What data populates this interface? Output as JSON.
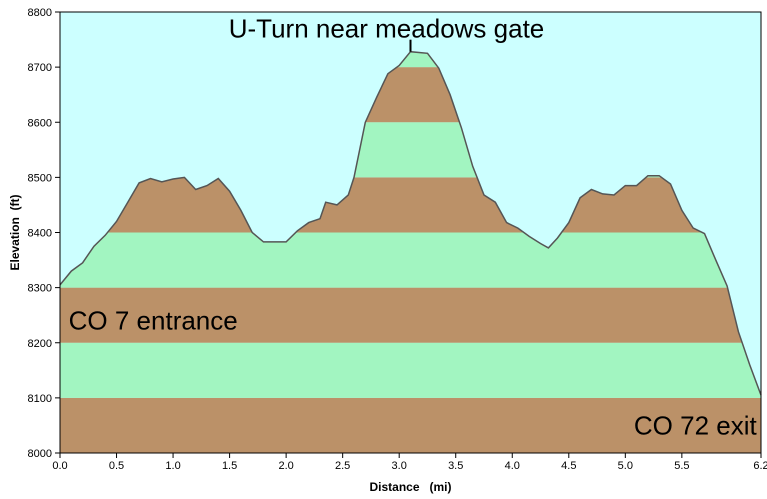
{
  "chart_data": {
    "type": "area",
    "xlabel": "Distance   (mi)",
    "ylabel": "Elevation  (ft)",
    "xlim": [
      0,
      6.2
    ],
    "ylim": [
      8000,
      8800
    ],
    "x_ticks": [
      0.0,
      0.5,
      1.0,
      1.5,
      2.0,
      2.5,
      3.0,
      3.5,
      4.0,
      4.5,
      5.0,
      5.5,
      6.2
    ],
    "x_tick_labels": [
      "0.0",
      "0.5",
      "1.0",
      "1.5",
      "2.0",
      "2.5",
      "3.0",
      "3.5",
      "4.0",
      "4.5",
      "5.0",
      "5.5",
      "6.2"
    ],
    "y_ticks": [
      8000,
      8100,
      8200,
      8300,
      8400,
      8500,
      8600,
      8700,
      8800
    ],
    "y_tick_labels": [
      "8000",
      "8100",
      "8200",
      "8300",
      "8400",
      "8500",
      "8600",
      "8700",
      "8800"
    ],
    "band_step": 100,
    "colors": {
      "background": "#ccffff",
      "band_brown": "#bb9168",
      "band_green": "#a2f5c1",
      "outline": "#555555"
    },
    "series": [
      {
        "x": [
          0.0,
          0.1,
          0.2,
          0.3,
          0.4,
          0.5,
          0.6,
          0.7,
          0.8,
          0.9,
          1.0,
          1.1,
          1.2,
          1.3,
          1.4,
          1.5,
          1.6,
          1.7,
          1.8,
          1.9,
          2.0,
          2.1,
          2.2,
          2.3,
          2.35,
          2.45,
          2.55,
          2.6,
          2.7,
          2.8,
          2.9,
          3.0,
          3.1,
          3.25,
          3.35,
          3.45,
          3.55,
          3.65,
          3.75,
          3.85,
          3.95,
          4.05,
          4.15,
          4.25,
          4.32,
          4.4,
          4.5,
          4.6,
          4.7,
          4.8,
          4.9,
          5.0,
          5.1,
          5.2,
          5.3,
          5.4,
          5.5,
          5.6,
          5.7,
          5.8,
          5.9,
          6.0,
          6.1,
          6.2
        ],
        "y": [
          8305,
          8330,
          8345,
          8375,
          8395,
          8420,
          8455,
          8490,
          8498,
          8492,
          8497,
          8500,
          8478,
          8485,
          8498,
          8475,
          8440,
          8400,
          8383,
          8383,
          8383,
          8403,
          8418,
          8425,
          8455,
          8450,
          8468,
          8500,
          8600,
          8645,
          8688,
          8703,
          8728,
          8725,
          8698,
          8650,
          8590,
          8520,
          8468,
          8455,
          8418,
          8408,
          8393,
          8380,
          8372,
          8390,
          8418,
          8463,
          8478,
          8470,
          8468,
          8485,
          8485,
          8503,
          8503,
          8488,
          8440,
          8408,
          8398,
          8350,
          8303,
          8220,
          8160,
          8105
        ]
      }
    ],
    "annotations": [
      {
        "text": "U-Turn near meadows gate",
        "x": 3.1,
        "y": 8728,
        "marker": true
      },
      {
        "text": "CO 7 entrance",
        "x": 0.05,
        "y": 8240
      },
      {
        "text": "CO 72 exit",
        "x": 6.18,
        "y": 8050
      }
    ]
  }
}
